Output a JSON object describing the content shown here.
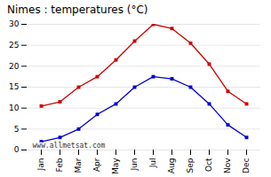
{
  "chart_data": {
    "type": "line",
    "title": "Nimes : temperatures (°C)",
    "categories": [
      "Jan",
      "Feb",
      "Mar",
      "Apr",
      "May",
      "Jun",
      "Jul",
      "Aug",
      "Sep",
      "Oct",
      "Nov",
      "Dec"
    ],
    "series": [
      {
        "color": "#cc0000",
        "marker": "square",
        "values": [
          10.5,
          11.5,
          15.0,
          17.5,
          21.5,
          26.0,
          30.0,
          29.0,
          25.5,
          20.5,
          14.0,
          11.0
        ]
      },
      {
        "color": "#0000cc",
        "marker": "square",
        "values": [
          2.0,
          3.0,
          5.0,
          8.5,
          11.0,
          15.0,
          17.5,
          17.0,
          15.0,
          11.0,
          6.0,
          3.0
        ]
      }
    ],
    "ylim": [
      0,
      30
    ],
    "yticks": [
      0,
      5,
      10,
      15,
      20,
      25,
      30
    ],
    "grid": "y",
    "annotation": "www.allmetsat.com"
  }
}
